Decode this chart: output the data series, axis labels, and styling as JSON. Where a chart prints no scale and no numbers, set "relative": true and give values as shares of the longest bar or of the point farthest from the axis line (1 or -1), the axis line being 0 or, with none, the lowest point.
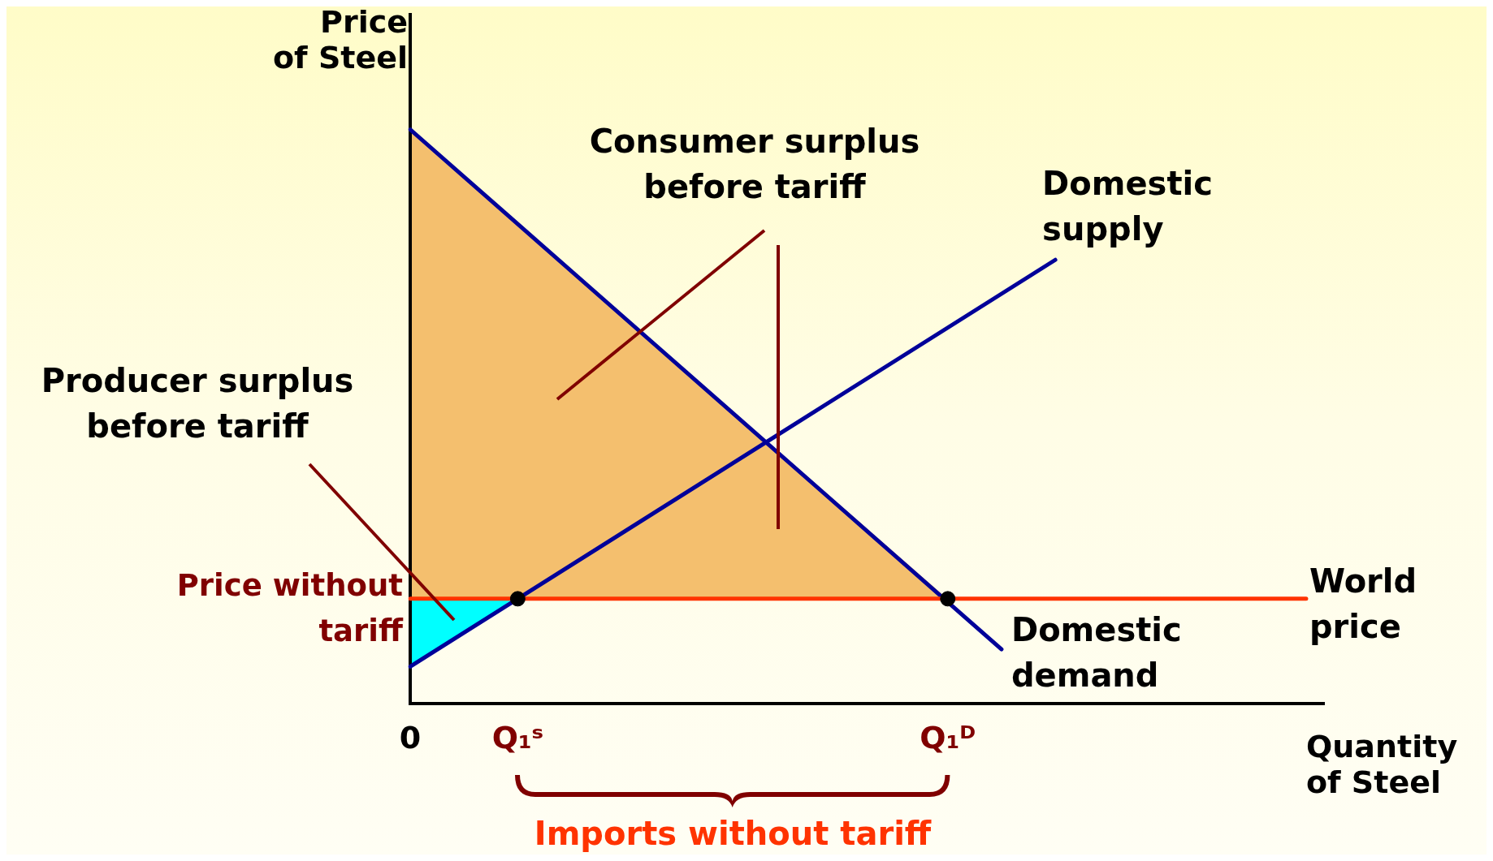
{
  "chart_data": {
    "type": "line",
    "relative": true,
    "xlabel": "Quantity of Steel",
    "ylabel": "Price of Steel",
    "categories": [
      "0",
      null,
      null,
      null,
      null,
      null,
      "Q₁ˢ",
      null,
      null,
      null,
      null,
      null,
      null,
      null,
      null,
      null,
      null,
      null,
      null,
      null,
      null,
      null,
      null,
      null,
      null,
      null,
      null,
      null,
      null,
      null,
      "Q₁ᴰ",
      null,
      null,
      null,
      null,
      null,
      null,
      null,
      null,
      null,
      null,
      null,
      null,
      null,
      null,
      null,
      null,
      null,
      null,
      null,
      null,
      null
    ],
    "grid": false,
    "legend": false,
    "tick_labels": "x",
    "series": [
      {
        "name": "World price",
        "color": "#ff3300",
        "values": [
          0.183,
          null,
          null,
          null,
          null,
          null,
          null,
          null,
          null,
          null,
          null,
          null,
          null,
          null,
          null,
          null,
          null,
          null,
          null,
          null,
          null,
          null,
          null,
          null,
          null,
          null,
          null,
          null,
          null,
          null,
          null,
          null,
          null,
          null,
          null,
          null,
          null,
          null,
          null,
          null,
          null,
          null,
          null,
          null,
          null,
          null,
          null,
          null,
          null,
          null,
          0.183,
          null
        ]
      },
      {
        "name": "Domestic demand",
        "color": "#000099",
        "values": [
          1,
          null,
          null,
          null,
          null,
          null,
          null,
          null,
          null,
          null,
          null,
          null,
          null,
          null,
          null,
          null,
          null,
          null,
          null,
          null,
          null,
          null,
          null,
          null,
          null,
          null,
          null,
          null,
          null,
          null,
          null,
          null,
          null,
          0.095,
          null,
          null,
          null,
          null,
          null,
          null,
          null,
          null,
          null,
          null,
          null,
          null,
          null,
          null,
          null,
          null,
          null,
          null
        ]
      },
      {
        "name": "Domestic supply",
        "color": "#000099",
        "values": [
          0.065,
          null,
          null,
          null,
          null,
          null,
          null,
          null,
          null,
          null,
          null,
          null,
          null,
          null,
          null,
          null,
          null,
          null,
          null,
          null,
          null,
          null,
          null,
          null,
          null,
          null,
          null,
          null,
          null,
          null,
          null,
          null,
          null,
          null,
          null,
          null,
          0.773,
          null,
          null,
          null,
          null,
          null,
          null,
          null,
          null,
          null,
          null,
          null,
          null,
          null,
          null,
          null
        ]
      },
      {
        "type": "scatter",
        "color": "#000000",
        "marker": "circle",
        "values": [
          null,
          null,
          null,
          null,
          null,
          null,
          0.183,
          null,
          null,
          null,
          null,
          null,
          null,
          null,
          null,
          null,
          null,
          null,
          null,
          null,
          null,
          null,
          null,
          null,
          null,
          null,
          null,
          null,
          null,
          null,
          0.183,
          null,
          null,
          null,
          null,
          null,
          null,
          null,
          null,
          null,
          null,
          null,
          null,
          null,
          null,
          null,
          null,
          null,
          null,
          null,
          null,
          null
        ]
      }
    ],
    "annotations": [
      "Consumer surplus before tariff",
      "Producer surplus before tariff",
      "Price without tariff",
      "Imports without tariff"
    ]
  }
}
